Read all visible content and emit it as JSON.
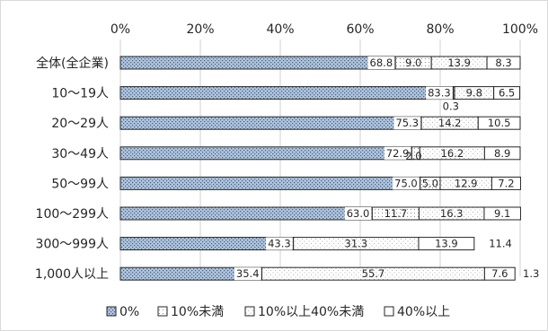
{
  "colors": {
    "zero": "#a9c4e4",
    "pattern_dot": "#5a5a5a",
    "under10": "#ffffff",
    "mid": "#ffffff",
    "over40": "#ffffff",
    "bar_stroke": "#262626",
    "gridline": "#d0d0d0",
    "frame": "#d9d9d9"
  },
  "chart_data": {
    "type": "bar",
    "orientation": "horizontal",
    "stacked": true,
    "percent_stacked": true,
    "title": "",
    "xlabel": "",
    "ylabel": "",
    "xlim": [
      0,
      100
    ],
    "x_ticks": [
      "0%",
      "20%",
      "40%",
      "60%",
      "80%",
      "100%"
    ],
    "grid": true,
    "legend_position": "bottom",
    "categories": [
      "全体(全企業)",
      "10〜19人",
      "20〜29人",
      "30〜49人",
      "50〜99人",
      "100〜299人",
      "300〜999人",
      "1,000人以上"
    ],
    "series": [
      {
        "name": "0%",
        "values": [
          68.8,
          83.3,
          75.3,
          72.9,
          75.0,
          63.0,
          43.3,
          35.4
        ],
        "labels": [
          "68.8",
          "83.3",
          "75.3",
          "72.9",
          "75.0",
          "63.0",
          "43.3",
          "35.4"
        ]
      },
      {
        "name": "10%未満",
        "values": [
          9.0,
          0.3,
          0.0,
          2.0,
          5.0,
          11.7,
          0.0,
          0.0
        ],
        "labels": [
          "9.0",
          "0.3",
          "",
          "2.0",
          "5.0",
          "11.7",
          "",
          ""
        ]
      },
      {
        "name": "10%以上40%未満",
        "values": [
          13.9,
          9.8,
          14.2,
          16.2,
          12.9,
          16.3,
          31.3,
          55.7
        ],
        "labels": [
          "13.9",
          "9.8",
          "14.2",
          "16.2",
          "12.9",
          "16.3",
          "31.3",
          "55.7"
        ]
      },
      {
        "name": "40%以上",
        "values": [
          8.3,
          6.5,
          10.5,
          8.9,
          7.2,
          9.1,
          13.9,
          7.6
        ],
        "labels": [
          "8.3",
          "6.5",
          "10.5",
          "8.9",
          "7.2",
          "9.1",
          "13.9",
          "7.6"
        ]
      }
    ],
    "extra_labels": [
      {
        "category": "300〜999人",
        "text": "11.4"
      },
      {
        "category": "1,000人以上",
        "text": "1.3"
      }
    ]
  },
  "legend": [
    {
      "key": "zero",
      "label": "0%"
    },
    {
      "key": "under10",
      "label": "10%未満"
    },
    {
      "key": "mid",
      "label": "10%以上40%未満"
    },
    {
      "key": "over40",
      "label": "40%以上"
    }
  ]
}
